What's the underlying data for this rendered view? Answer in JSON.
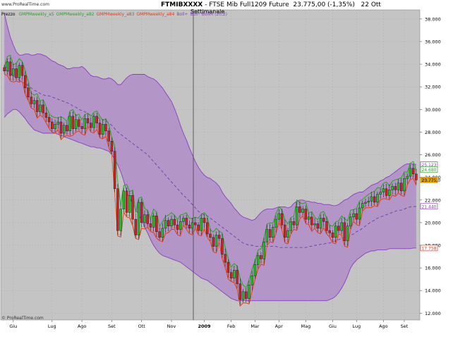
{
  "header": {
    "symbol": "FTMIBXXXX",
    "title": "FTSE Mib Full1209 Future",
    "price": "23.775,00 (-1,35%)",
    "date": "22 Ott",
    "period": "Settimanale"
  },
  "watermark": "www.ProRealTime.com",
  "watermark_bottom": "© ProRealTime.com",
  "legend": {
    "label": "Prezzo",
    "items": [
      {
        "text": "GMPMweekly_a5",
        "color": "#2e9e2e"
      },
      {
        "text": "GMPMweekly_a82",
        "color": "#2e9e2e"
      },
      {
        "text": "GMPMweekly_a83",
        "color": "#e03c1e"
      },
      {
        "text": "GMPMweekly_a84",
        "color": "#e03c1e"
      },
      {
        "text": "Boll+",
        "color": "#8a3fbf"
      },
      {
        "text": "Boll-",
        "color": "#8a3fbf"
      },
      {
        "text": "BollM (20,2)",
        "color": "#8a3fbf"
      }
    ]
  },
  "chart_data": {
    "type": "candlestick",
    "title": "FTSE Mib Full1209 Future",
    "y_ticks": [
      "12.000",
      "14.000",
      "16.000",
      "18.000",
      "20.000",
      "22.000",
      "24.000",
      "26.000",
      "28.000",
      "30.000",
      "32.000",
      "34.000",
      "36.000",
      "38.000"
    ],
    "y_range": [
      11400,
      38800
    ],
    "x_labels": [
      "Giu",
      "Lug",
      "Ago",
      "Set",
      "Ott",
      "Nov",
      "2009",
      "Feb",
      "Mar",
      "Apr",
      "Mag",
      "Giu",
      "Lug",
      "Ago",
      "Set"
    ],
    "x_label_weeks": [
      3,
      16,
      26,
      36,
      46,
      56,
      67,
      76,
      84,
      92,
      101,
      110,
      118,
      127,
      134
    ],
    "price_tags": [
      {
        "value": 25123,
        "text": "25.123",
        "color": "#8a3fbf"
      },
      {
        "value": 24680,
        "text": "24.680",
        "color": "#2e9e2e"
      },
      {
        "value": 23775,
        "text": "23.775,0",
        "color": "#e0a000"
      },
      {
        "value": 21440,
        "text": "21.440",
        "color": "#8a3fbf"
      },
      {
        "value": 17758,
        "text": "17.758",
        "color": "#e03c1e"
      }
    ],
    "close": [
      33400,
      34200,
      33000,
      33600,
      32800,
      33900,
      33000,
      31900,
      31100,
      30500,
      30800,
      29800,
      30400,
      29700,
      29300,
      28900,
      28300,
      28700,
      28900,
      27900,
      28600,
      28100,
      29400,
      28300,
      29100,
      28500,
      28300,
      29200,
      28800,
      28400,
      29400,
      28800,
      27800,
      28700,
      28100,
      27200,
      26300,
      23000,
      19300,
      21200,
      22800,
      20900,
      22400,
      20300,
      18900,
      21800,
      20000,
      20700,
      19900,
      19600,
      20600,
      19200,
      18700,
      19500,
      20200,
      19700,
      20300,
      19800,
      19400,
      20100,
      20400,
      19800,
      19500,
      20000,
      19800,
      19300,
      20400,
      20000,
      19000,
      18700,
      17900,
      18900,
      18600,
      17200,
      16500,
      15600,
      15100,
      15800,
      14600,
      13200,
      13900,
      13300,
      14500,
      15300,
      16300,
      17100,
      16800,
      18300,
      19400,
      18700,
      19600,
      20300,
      20800,
      19800,
      18700,
      19300,
      20100,
      19800,
      21400,
      20900,
      21200,
      20300,
      20500,
      19800,
      19900,
      19500,
      20400,
      20100,
      19300,
      19100,
      18700,
      19700,
      19300,
      20000,
      18400,
      19700,
      20500,
      20800,
      20300,
      21300,
      21700,
      21800,
      21900,
      22300,
      21800,
      22500,
      22700,
      23000,
      22400,
      22900,
      23200,
      22900,
      23500,
      22800,
      23900,
      24100,
      24800,
      24300,
      23775
    ],
    "band_upper": [
      38500,
      37400,
      36400,
      35700,
      35100,
      34800,
      34800,
      34900,
      34900,
      34800,
      34800,
      34900,
      34900,
      34800,
      34700,
      34500,
      34300,
      34200,
      34000,
      33900,
      33800,
      33600,
      33600,
      33700,
      33700,
      33700,
      33800,
      33600,
      33300,
      33000,
      32900,
      32900,
      32800,
      32700,
      32700,
      32800,
      32700,
      32500,
      32200,
      32200,
      32500,
      32800,
      33000,
      33100,
      33100,
      33100,
      33100,
      33100,
      32900,
      32800,
      32700,
      32500,
      32200,
      31900,
      31500,
      31100,
      30700,
      30100,
      29400,
      28600,
      27900,
      27300,
      26600,
      26000,
      25400,
      24900,
      24500,
      24200,
      24000,
      23900,
      23700,
      23500,
      23200,
      22700,
      22300,
      22000,
      21700,
      21300,
      21000,
      20700,
      20500,
      20400,
      20300,
      20200,
      20300,
      20600,
      20900,
      21100,
      21200,
      21200,
      21200,
      21300,
      21400,
      21400,
      21400,
      21300,
      21400,
      21700,
      21900,
      22000,
      22000,
      21900,
      21900,
      21800,
      21800,
      21700,
      21700,
      21600,
      21600,
      21600,
      21500,
      21500,
      21600,
      21800,
      22000,
      22100,
      22300,
      22500,
      22600,
      22700,
      22700,
      22900,
      23100,
      23300,
      23400,
      23500,
      23700,
      23800,
      24000,
      24100,
      24300,
      24500,
      24700,
      24900,
      25100,
      25200,
      25200,
      25200,
      25123
    ],
    "band_middle": [
      33900,
      33500,
      33200,
      33000,
      32800,
      32600,
      32400,
      32300,
      32100,
      31900,
      31700,
      31600,
      31400,
      31300,
      31200,
      31200,
      31100,
      31000,
      30900,
      30800,
      30700,
      30600,
      30500,
      30300,
      30200,
      30000,
      29900,
      29800,
      29600,
      29500,
      29400,
      29300,
      29200,
      29100,
      29000,
      28800,
      28600,
      28300,
      28000,
      27800,
      27600,
      27400,
      27200,
      27000,
      26800,
      26600,
      26400,
      26200,
      26000,
      25700,
      25400,
      25100,
      24800,
      24500,
      24200,
      23900,
      23600,
      23300,
      23000,
      22700,
      22400,
      22200,
      21900,
      21600,
      21300,
      21000,
      20800,
      20700,
      20600,
      20400,
      20200,
      20000,
      19800,
      19600,
      19400,
      19200,
      19000,
      18800,
      18600,
      18400,
      18200,
      18100,
      18000,
      18000,
      17900,
      17900,
      17900,
      17900,
      17900,
      17900,
      17900,
      17900,
      17800,
      17800,
      17800,
      17800,
      17800,
      17800,
      17800,
      17800,
      17800,
      17800,
      17900,
      17900,
      18000,
      18000,
      18100,
      18100,
      18200,
      18200,
      18300,
      18400,
      18500,
      18600,
      18700,
      18800,
      18900,
      19000,
      19200,
      19300,
      19500,
      19700,
      19900,
      20100,
      20200,
      20400,
      20500,
      20600,
      20700,
      20800,
      20900,
      21000,
      21100,
      21100,
      21200,
      21300,
      21400,
      21400,
      21440
    ],
    "band_lower": [
      29300,
      29600,
      29800,
      30000,
      30000,
      29800,
      29500,
      29200,
      28800,
      28500,
      28200,
      28100,
      28000,
      27900,
      27900,
      27900,
      27900,
      27900,
      27800,
      27700,
      27600,
      27500,
      27400,
      27300,
      27200,
      27100,
      27000,
      26900,
      26800,
      26700,
      26700,
      26600,
      26600,
      26500,
      26400,
      26300,
      26000,
      25600,
      25100,
      24500,
      23700,
      22700,
      22200,
      21700,
      21200,
      20700,
      20200,
      19600,
      19100,
      18500,
      18000,
      17600,
      17300,
      17100,
      17000,
      16900,
      16800,
      16700,
      16600,
      16500,
      16300,
      16100,
      15900,
      15700,
      15500,
      15300,
      15100,
      15000,
      14900,
      14700,
      14500,
      14300,
      14100,
      13900,
      13700,
      13500,
      13300,
      13200,
      13100,
      13100,
      13100,
      13100,
      13100,
      13100,
      13100,
      13100,
      13100,
      13100,
      13100,
      13100,
      13100,
      13100,
      13100,
      13100,
      13100,
      13100,
      13100,
      13100,
      13100,
      13100,
      13100,
      13100,
      13100,
      13100,
      13100,
      13100,
      13100,
      13100,
      13100,
      13200,
      13300,
      13500,
      13800,
      14200,
      14700,
      15300,
      16000,
      16400,
      16700,
      16900,
      17100,
      17300,
      17400,
      17500,
      17500,
      17600,
      17600,
      17600,
      17600,
      17700,
      17700,
      17700,
      17700,
      17700,
      17700,
      17700,
      17700,
      17758,
      17758
    ]
  }
}
